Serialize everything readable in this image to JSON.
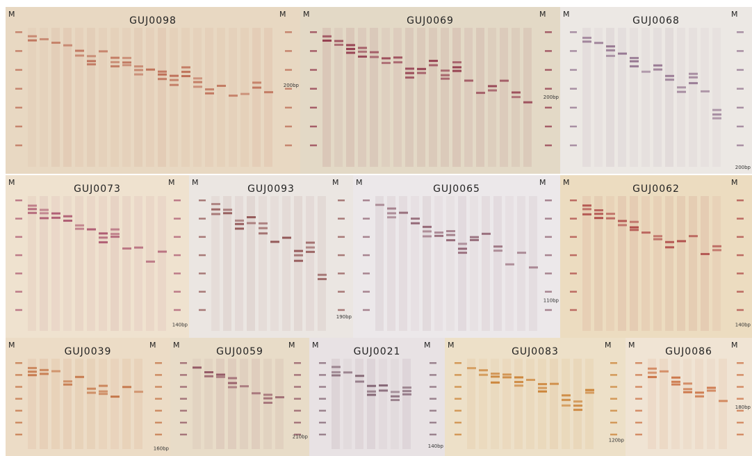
{
  "marker": "M",
  "panels": [
    {
      "title": "GUJ0098",
      "size_label": "200bp"
    },
    {
      "title": "GUJ0069",
      "size_label": "200bp"
    },
    {
      "title": "GUJ0068",
      "size_label": "200bp"
    },
    {
      "title": "GUJ0073",
      "size_label": "140bp"
    },
    {
      "title": "GUJ0093",
      "size_label": "190bp"
    },
    {
      "title": "GUJ0065",
      "size_label": "110bp"
    },
    {
      "title": "GUJ0062",
      "size_label": "140bp"
    },
    {
      "title": "GUJ0039",
      "size_label": "160bp"
    },
    {
      "title": "GUJ0059",
      "size_label": "210bp"
    },
    {
      "title": "GUJ0021",
      "size_label": "140bp"
    },
    {
      "title": "GUJ0083",
      "size_label": "120bp"
    },
    {
      "title": "GUJ0086",
      "size_label": "180bp"
    }
  ]
}
